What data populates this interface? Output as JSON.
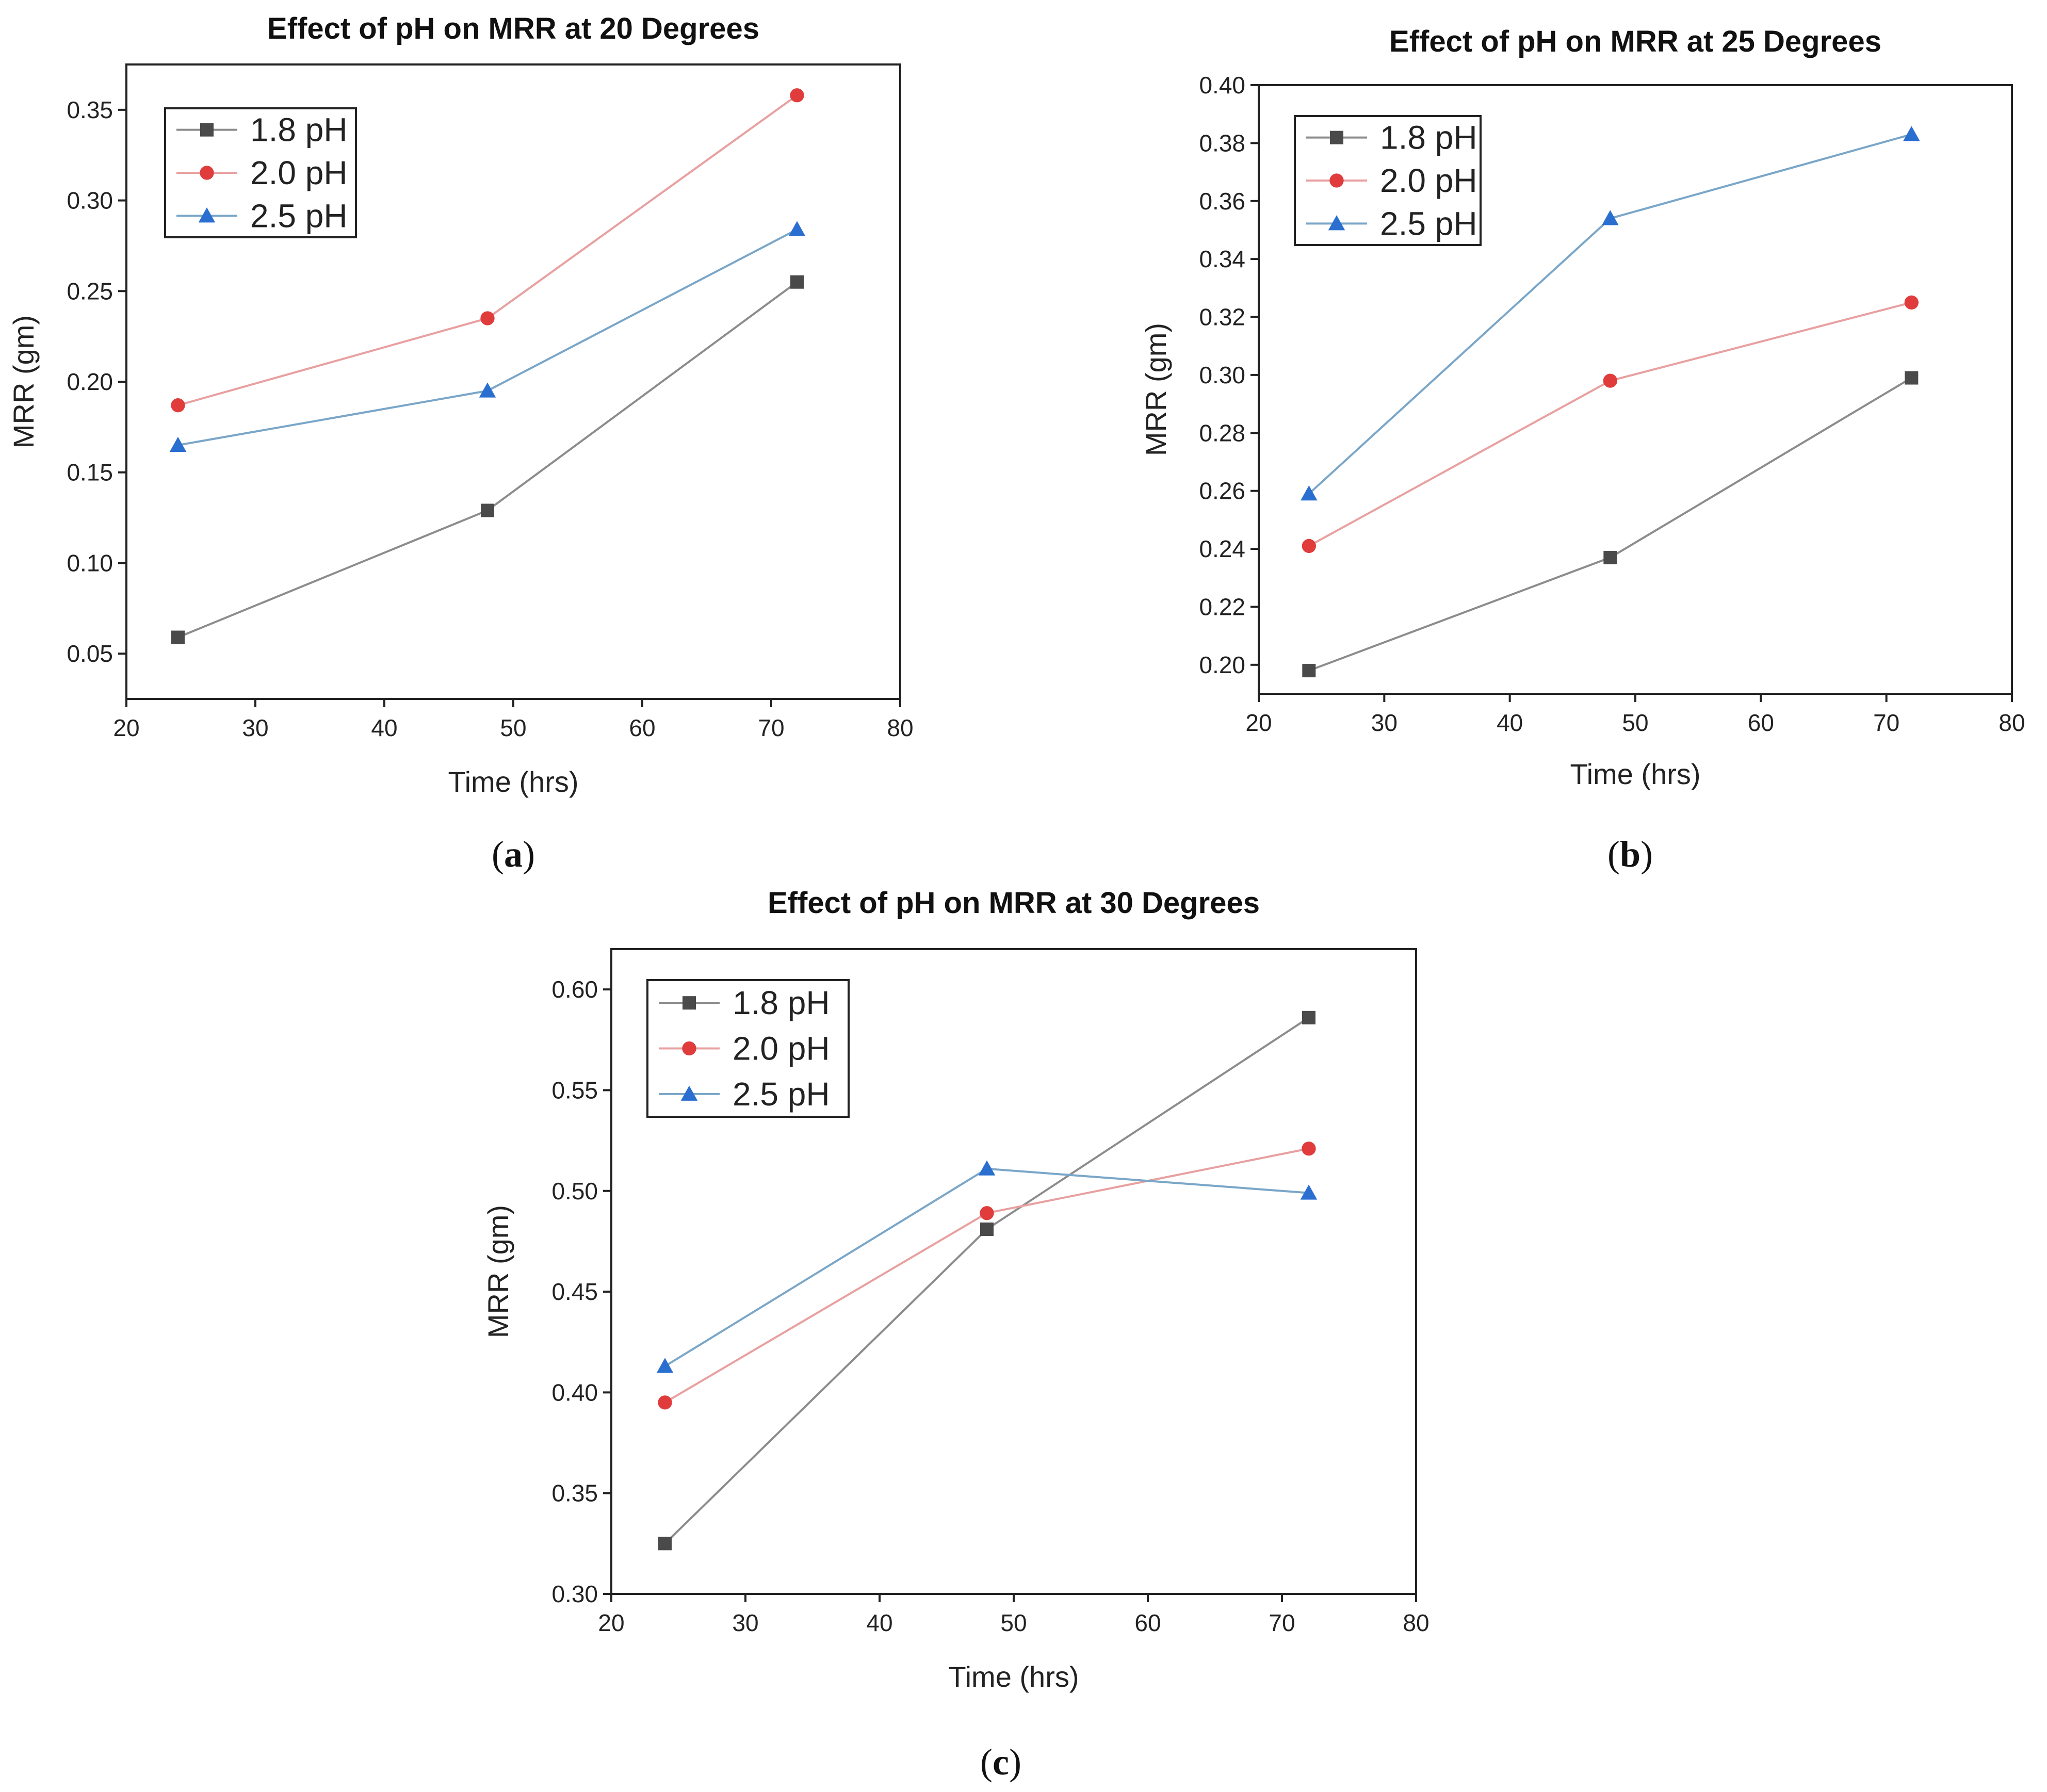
{
  "chart_data": [
    {
      "type": "line",
      "title": "Effect of pH on MRR at 20 Degrees",
      "caption_letter": "a",
      "xlabel": "Time (hrs)",
      "ylabel": "MRR (gm)",
      "xlim": [
        20,
        80
      ],
      "ylim": [
        0.025,
        0.375
      ],
      "xticks": [
        "20",
        "30",
        "40",
        "50",
        "60",
        "70",
        "80"
      ],
      "yticks": [
        "0.05",
        "0.10",
        "0.15",
        "0.20",
        "0.25",
        "0.30",
        "0.35"
      ],
      "x": [
        24,
        48,
        72
      ],
      "legend_position": "top-left",
      "series": [
        {
          "name": "1.8 pH",
          "color": "#4a4a4a",
          "line_color": "#8c8c8c",
          "marker": "square",
          "values": [
            0.059,
            0.129,
            0.255
          ]
        },
        {
          "name": "2.0 pH",
          "color": "#e03c3c",
          "line_color": "#e8a0a0",
          "marker": "circle",
          "values": [
            0.187,
            0.235,
            0.358
          ]
        },
        {
          "name": "2.5 pH",
          "color": "#2a6fd0",
          "line_color": "#7aa6c8",
          "marker": "triangle",
          "values": [
            0.165,
            0.195,
            0.284
          ]
        }
      ]
    },
    {
      "type": "line",
      "title": "Effect of pH on MRR at 25 Degrees",
      "caption_letter": "b",
      "xlabel": "Time (hrs)",
      "ylabel": "MRR (gm)",
      "xlim": [
        20,
        80
      ],
      "ylim": [
        0.19,
        0.4
      ],
      "xticks": [
        "20",
        "30",
        "40",
        "50",
        "60",
        "70",
        "80"
      ],
      "yticks": [
        "0.20",
        "0.22",
        "0.24",
        "0.26",
        "0.28",
        "0.30",
        "0.32",
        "0.34",
        "0.36",
        "0.38",
        "0.40"
      ],
      "x": [
        24,
        48,
        72
      ],
      "legend_position": "top-left",
      "series": [
        {
          "name": "1.8 pH",
          "color": "#4a4a4a",
          "line_color": "#8c8c8c",
          "marker": "square",
          "values": [
            0.198,
            0.237,
            0.299
          ]
        },
        {
          "name": "2.0 pH",
          "color": "#e03c3c",
          "line_color": "#e8a0a0",
          "marker": "circle",
          "values": [
            0.241,
            0.298,
            0.325
          ]
        },
        {
          "name": "2.5 pH",
          "color": "#2a6fd0",
          "line_color": "#7aa6c8",
          "marker": "triangle",
          "values": [
            0.259,
            0.354,
            0.383
          ]
        }
      ]
    },
    {
      "type": "line",
      "title": "Effect of pH on MRR at 30 Degrees",
      "caption_letter": "c",
      "xlabel": "Time (hrs)",
      "ylabel": "MRR (gm)",
      "xlim": [
        20,
        80
      ],
      "ylim": [
        0.3,
        0.62
      ],
      "xticks": [
        "20",
        "30",
        "40",
        "50",
        "60",
        "70",
        "80"
      ],
      "yticks": [
        "0.30",
        "0.35",
        "0.40",
        "0.45",
        "0.50",
        "0.55",
        "0.60"
      ],
      "x": [
        24,
        48,
        72
      ],
      "legend_position": "top-left",
      "series": [
        {
          "name": "1.8 pH",
          "color": "#4a4a4a",
          "line_color": "#8c8c8c",
          "marker": "square",
          "values": [
            0.325,
            0.481,
            0.586
          ]
        },
        {
          "name": "2.0 pH",
          "color": "#e03c3c",
          "line_color": "#e8a0a0",
          "marker": "circle",
          "values": [
            0.395,
            0.489,
            0.521
          ]
        },
        {
          "name": "2.5 pH",
          "color": "#2a6fd0",
          "line_color": "#7aa6c8",
          "marker": "triangle",
          "values": [
            0.413,
            0.511,
            0.499
          ]
        }
      ]
    }
  ]
}
